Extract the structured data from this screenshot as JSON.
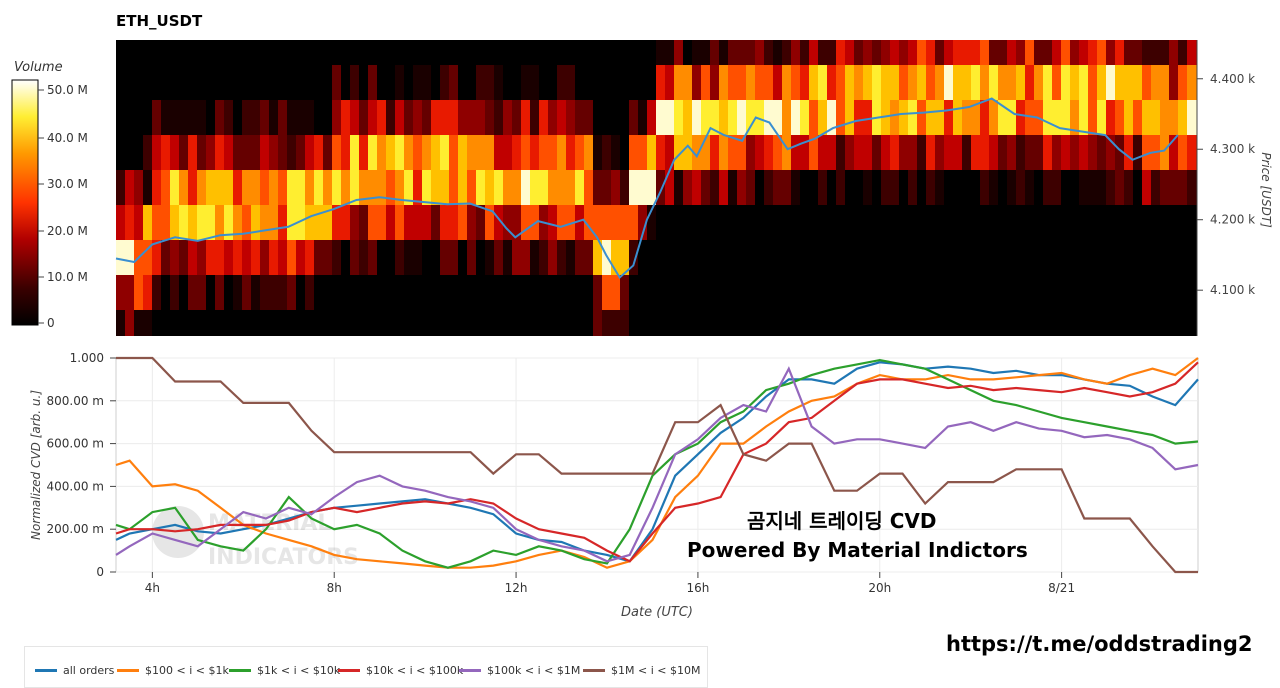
{
  "title": "ETH_USDT",
  "colorbar": {
    "label": "Volume",
    "ticks": [
      "50.0 M",
      "40.0 M",
      "30.0 M",
      "20.0 M",
      "10.0 M",
      "0"
    ]
  },
  "heatmap": {
    "right_axis_label": "Price [USDT]",
    "price_ticks": [
      "4.400 k",
      "4.300 k",
      "4.200 k",
      "4.100 k"
    ]
  },
  "cvd": {
    "y_axis_label": "Normalized CVD [arb. u.]",
    "x_axis_label": "Date (UTC)",
    "y_ticks": [
      "1.000",
      "800.00 m",
      "600.00 m",
      "400.00 m",
      "200.00 m",
      "0"
    ],
    "x_ticks": [
      "4h",
      "8h",
      "12h",
      "16h",
      "20h",
      "8/21"
    ]
  },
  "overlay": {
    "title": "곰지네 트레이딩 CVD",
    "subtitle": "Powered By Material Indictors"
  },
  "url": "https://t.me/oddstrading2",
  "legend": [
    {
      "label": "all orders",
      "color": "#1f77b4"
    },
    {
      "label": "$100 < i < $1k",
      "color": "#ff7f0e"
    },
    {
      "label": "$1k < i < $10k",
      "color": "#2ca02c"
    },
    {
      "label": "$10k < i < $100k",
      "color": "#d62728"
    },
    {
      "label": "$100k < i < $1M",
      "color": "#9467bd"
    },
    {
      "label": "$1M < i < $10M",
      "color": "#8c564b"
    }
  ],
  "chart_data": [
    {
      "type": "heatmap",
      "title": "ETH_USDT",
      "ylabel": "Price [USDT]",
      "colorbar_label": "Volume",
      "colorbar_range": [
        0,
        52000000
      ],
      "ylim": [
        4035,
        4455
      ],
      "price_series": {
        "x_hours": [
          3.2,
          3.6,
          4.0,
          4.5,
          5.0,
          5.5,
          6.0,
          6.5,
          7.0,
          7.5,
          8.0,
          8.5,
          9.0,
          9.5,
          10.0,
          10.5,
          11.0,
          11.5,
          11.8,
          12.0,
          12.5,
          13.0,
          13.5,
          13.8,
          14.0,
          14.3,
          14.6,
          14.9,
          15.2,
          15.5,
          15.8,
          16.0,
          16.3,
          16.6,
          17.0,
          17.3,
          17.6,
          18.0,
          18.3,
          18.6,
          19.0,
          19.5,
          20.0,
          20.5,
          21.0,
          21.5,
          22.0,
          22.5,
          23.0,
          23.5,
          24.0,
          24.5,
          25.0,
          25.3,
          25.6,
          26.0,
          26.3,
          26.6
        ],
        "price": [
          4145,
          4140,
          4165,
          4175,
          4170,
          4178,
          4180,
          4185,
          4190,
          4205,
          4215,
          4228,
          4232,
          4228,
          4225,
          4222,
          4223,
          4212,
          4188,
          4175,
          4198,
          4190,
          4200,
          4175,
          4150,
          4118,
          4135,
          4200,
          4240,
          4285,
          4305,
          4290,
          4330,
          4320,
          4312,
          4345,
          4338,
          4300,
          4308,
          4315,
          4330,
          4340,
          4345,
          4350,
          4352,
          4355,
          4360,
          4372,
          4350,
          4345,
          4330,
          4325,
          4320,
          4300,
          4285,
          4295,
          4298,
          4320
        ]
      }
    },
    {
      "type": "line",
      "xlabel": "Date (UTC)",
      "ylabel": "Normalized CVD [arb. u.]",
      "xlim": [
        3.2,
        27.0
      ],
      "ylim": [
        0,
        1
      ],
      "x_tick_labels": [
        "4h",
        "8h",
        "12h",
        "16h",
        "20h",
        "8/21"
      ],
      "x": [
        3.2,
        3.5,
        4.0,
        4.5,
        5.0,
        5.5,
        6.0,
        6.5,
        7.0,
        7.5,
        8.0,
        8.5,
        9.0,
        9.5,
        10.0,
        10.5,
        11.0,
        11.5,
        12.0,
        12.5,
        13.0,
        13.5,
        14.0,
        14.5,
        15.0,
        15.5,
        16.0,
        16.5,
        17.0,
        17.5,
        18.0,
        18.5,
        19.0,
        19.5,
        20.0,
        20.5,
        21.0,
        21.5,
        22.0,
        22.5,
        23.0,
        23.5,
        24.0,
        24.5,
        25.0,
        25.5,
        26.0,
        26.5,
        27.0
      ],
      "series": [
        {
          "name": "all orders",
          "values": [
            0.15,
            0.18,
            0.2,
            0.22,
            0.19,
            0.18,
            0.2,
            0.22,
            0.25,
            0.28,
            0.3,
            0.31,
            0.32,
            0.33,
            0.34,
            0.32,
            0.3,
            0.27,
            0.18,
            0.15,
            0.14,
            0.1,
            0.08,
            0.05,
            0.2,
            0.45,
            0.55,
            0.65,
            0.72,
            0.82,
            0.9,
            0.9,
            0.88,
            0.95,
            0.98,
            0.97,
            0.95,
            0.96,
            0.95,
            0.93,
            0.94,
            0.92,
            0.92,
            0.9,
            0.88,
            0.87,
            0.82,
            0.78,
            0.9
          ]
        },
        {
          "name": "$100 < i < $1k",
          "values": [
            0.5,
            0.52,
            0.4,
            0.41,
            0.38,
            0.3,
            0.22,
            0.18,
            0.15,
            0.12,
            0.08,
            0.06,
            0.05,
            0.04,
            0.03,
            0.02,
            0.02,
            0.03,
            0.05,
            0.08,
            0.1,
            0.07,
            0.02,
            0.05,
            0.15,
            0.35,
            0.45,
            0.6,
            0.6,
            0.68,
            0.75,
            0.8,
            0.82,
            0.88,
            0.92,
            0.9,
            0.9,
            0.92,
            0.9,
            0.9,
            0.91,
            0.92,
            0.93,
            0.9,
            0.88,
            0.92,
            0.95,
            0.92,
            1.0
          ]
        },
        {
          "name": "$1k < i < $10k",
          "values": [
            0.22,
            0.2,
            0.28,
            0.3,
            0.15,
            0.12,
            0.1,
            0.2,
            0.35,
            0.25,
            0.2,
            0.22,
            0.18,
            0.1,
            0.05,
            0.02,
            0.05,
            0.1,
            0.08,
            0.12,
            0.1,
            0.06,
            0.04,
            0.2,
            0.45,
            0.55,
            0.6,
            0.7,
            0.75,
            0.85,
            0.88,
            0.92,
            0.95,
            0.97,
            0.99,
            0.97,
            0.95,
            0.9,
            0.85,
            0.8,
            0.78,
            0.75,
            0.72,
            0.7,
            0.68,
            0.66,
            0.64,
            0.6,
            0.61
          ]
        },
        {
          "name": "$10k < i < $100k",
          "values": [
            0.18,
            0.2,
            0.2,
            0.19,
            0.2,
            0.22,
            0.22,
            0.22,
            0.24,
            0.28,
            0.3,
            0.28,
            0.3,
            0.32,
            0.33,
            0.32,
            0.34,
            0.32,
            0.25,
            0.2,
            0.18,
            0.16,
            0.1,
            0.05,
            0.18,
            0.3,
            0.32,
            0.35,
            0.55,
            0.6,
            0.7,
            0.72,
            0.8,
            0.88,
            0.9,
            0.9,
            0.88,
            0.86,
            0.87,
            0.85,
            0.86,
            0.85,
            0.84,
            0.86,
            0.84,
            0.82,
            0.84,
            0.88,
            0.98
          ]
        },
        {
          "name": "$100k < i < $1M",
          "values": [
            0.08,
            0.12,
            0.18,
            0.15,
            0.12,
            0.2,
            0.28,
            0.25,
            0.3,
            0.27,
            0.35,
            0.42,
            0.45,
            0.4,
            0.38,
            0.35,
            0.33,
            0.3,
            0.2,
            0.15,
            0.12,
            0.1,
            0.05,
            0.08,
            0.3,
            0.55,
            0.62,
            0.72,
            0.78,
            0.75,
            0.95,
            0.68,
            0.6,
            0.62,
            0.62,
            0.6,
            0.58,
            0.68,
            0.7,
            0.66,
            0.7,
            0.67,
            0.66,
            0.63,
            0.64,
            0.62,
            0.58,
            0.48,
            0.5
          ]
        },
        {
          "name": "$1M < i < $10M",
          "values": [
            1.0,
            1.0,
            1.0,
            0.89,
            0.89,
            0.89,
            0.79,
            0.79,
            0.79,
            0.66,
            0.56,
            0.56,
            0.56,
            0.56,
            0.56,
            0.56,
            0.56,
            0.46,
            0.55,
            0.55,
            0.46,
            0.46,
            0.46,
            0.46,
            0.46,
            0.7,
            0.7,
            0.78,
            0.55,
            0.52,
            0.6,
            0.6,
            0.38,
            0.38,
            0.46,
            0.46,
            0.32,
            0.42,
            0.42,
            0.42,
            0.48,
            0.48,
            0.48,
            0.25,
            0.25,
            0.25,
            0.12,
            0.0,
            0.0
          ]
        }
      ]
    }
  ]
}
